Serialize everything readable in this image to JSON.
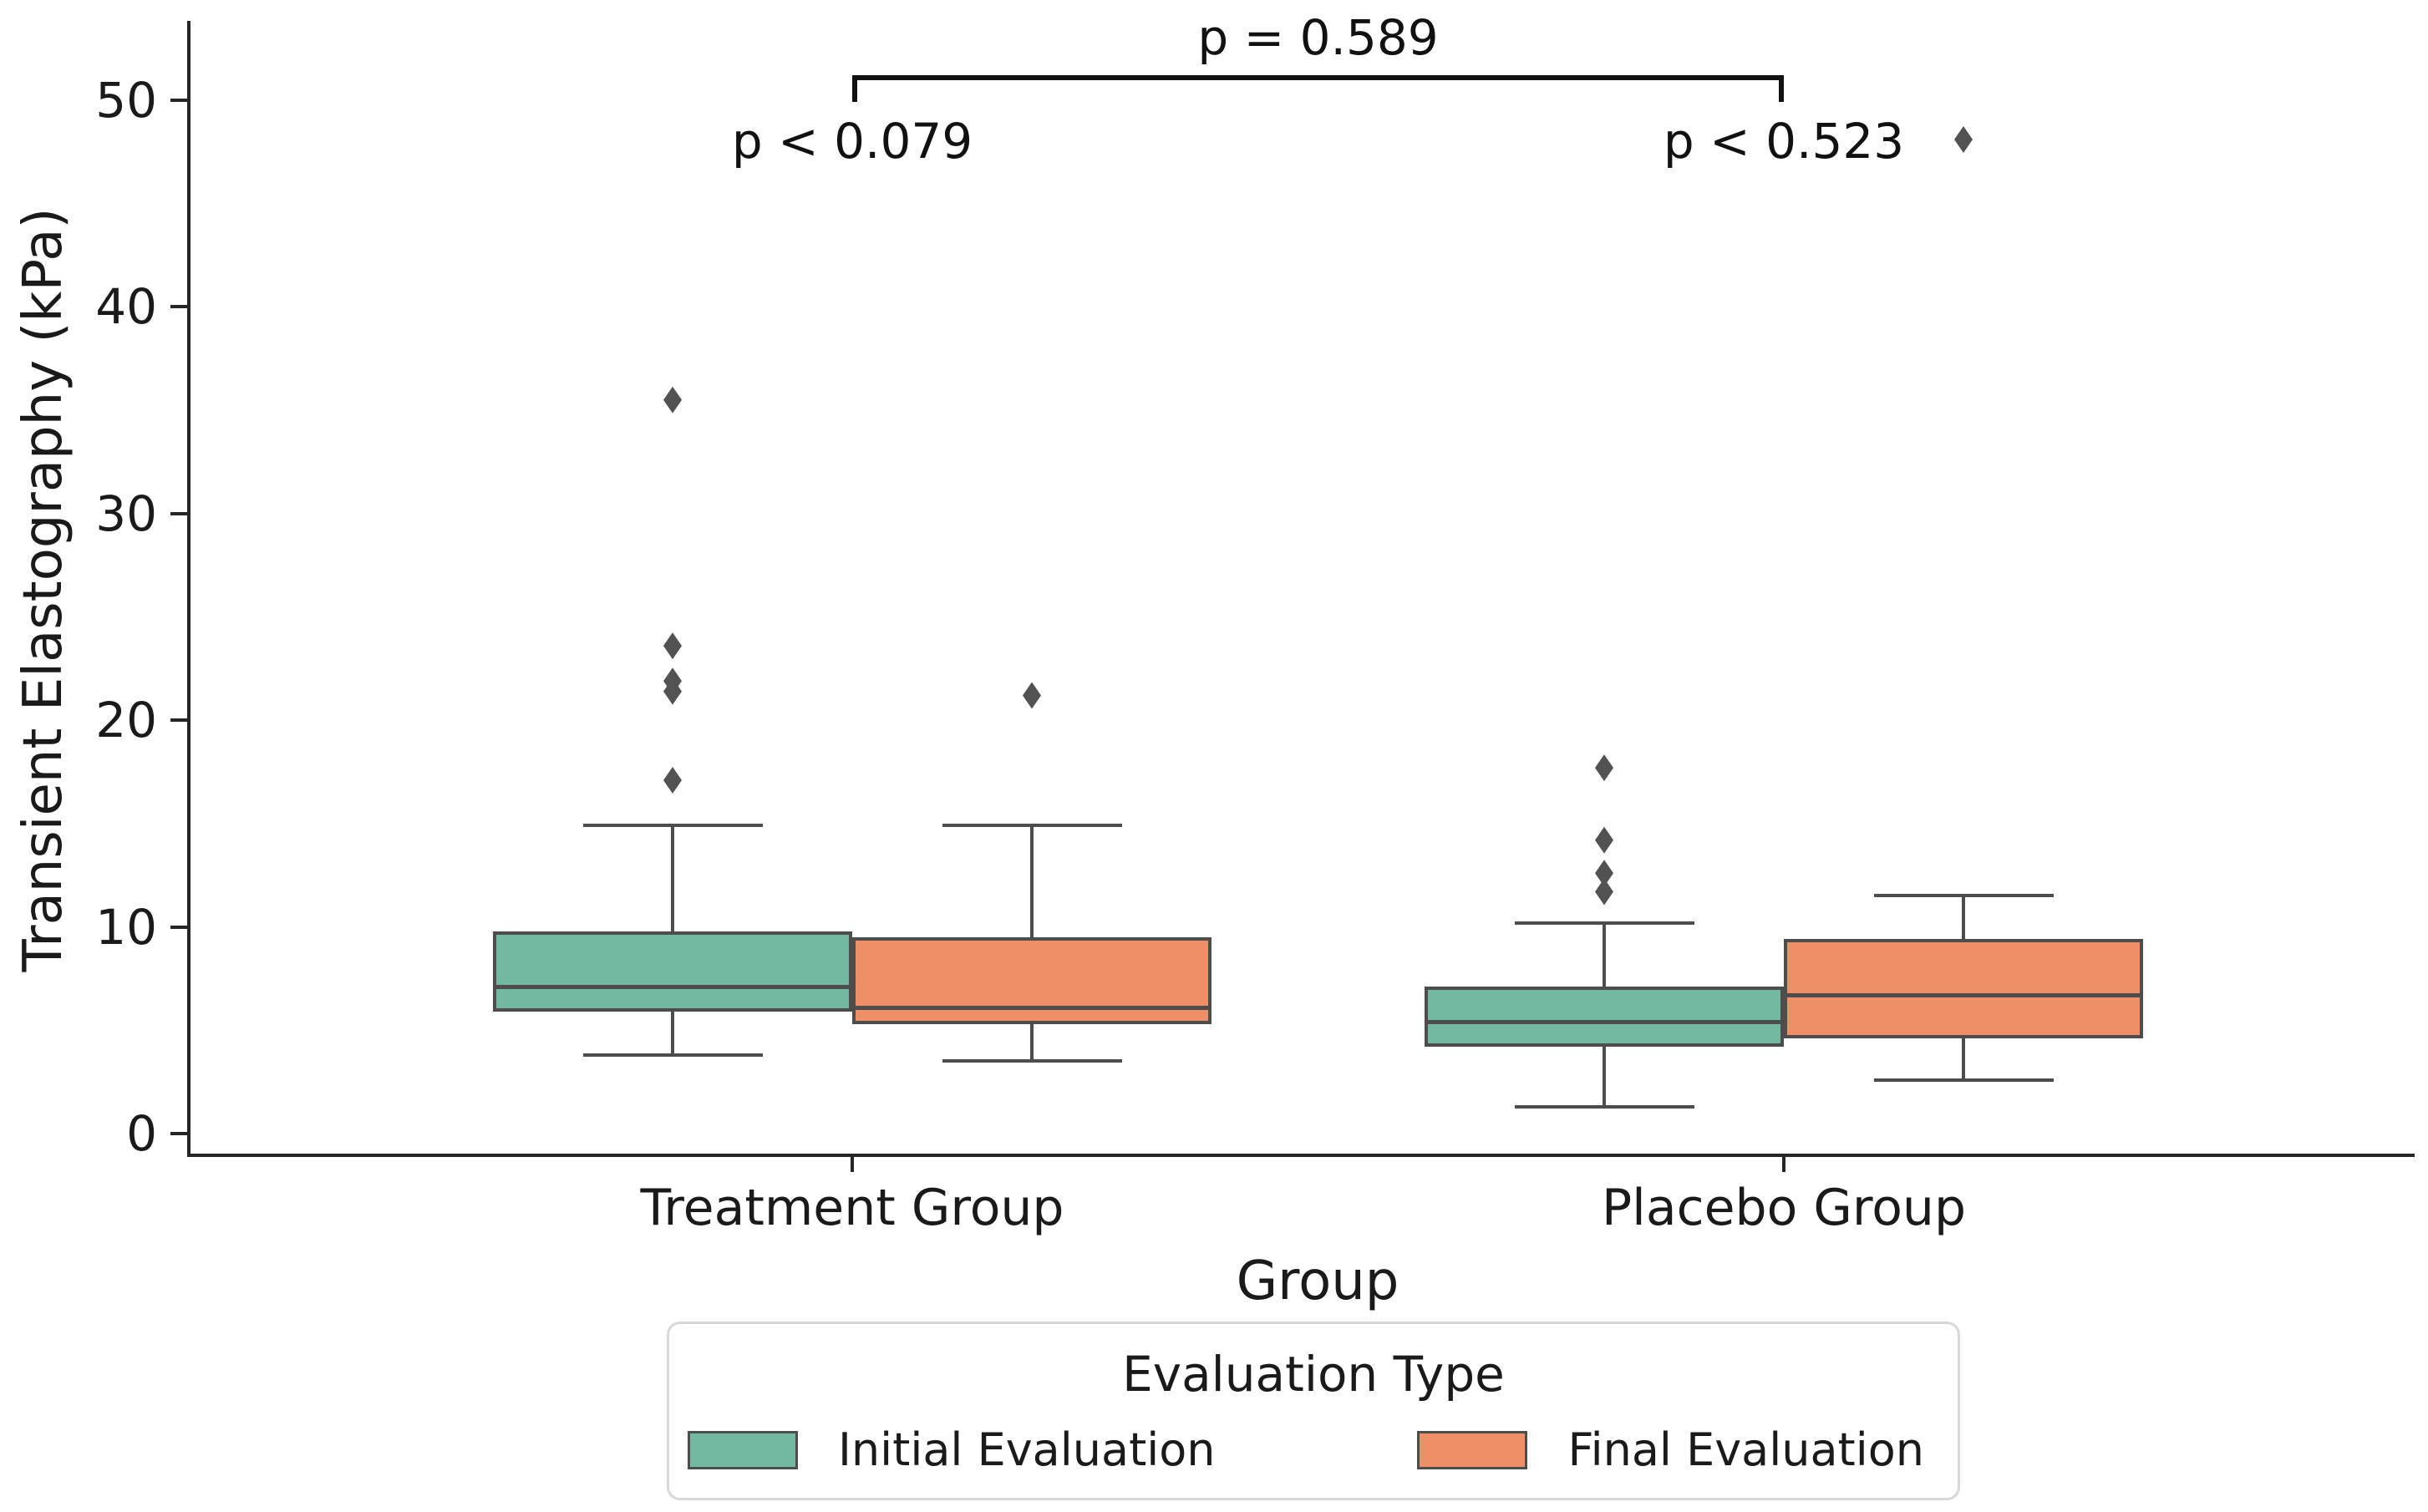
{
  "figure": {
    "ylabel": "Transient Elastography (kPa)",
    "xlabel": "Group"
  },
  "legend": {
    "title": "Evaluation Type",
    "entries": [
      {
        "label": "Initial Evaluation",
        "color": "#73b8a0"
      },
      {
        "label": "Final Evaluation",
        "color": "#ee8f68"
      }
    ]
  },
  "chart_data": {
    "type": "boxplot",
    "title": "",
    "xlabel": "Group",
    "ylabel": "Transient Elastography (kPa)",
    "ylim": [
      -1.5,
      53.5
    ],
    "yticks": [
      0,
      10,
      20,
      30,
      40,
      50
    ],
    "categories": [
      "Treatment Group",
      "Placebo Group"
    ],
    "grid": false,
    "legend_position": "bottom",
    "legend_title": "Evaluation Type",
    "edge_color": "#4d4d4d",
    "flier_color": "#525252",
    "series": [
      {
        "name": "Initial Evaluation",
        "color": "#73b8a0",
        "boxes": [
          {
            "group": "Treatment Group",
            "whisker_low": 3.8,
            "q1": 5.9,
            "median": 7.1,
            "q3": 9.8,
            "whisker_high": 14.9,
            "outliers": [
              17.1,
              21.4,
              21.9,
              23.6,
              35.5
            ]
          },
          {
            "group": "Placebo Group",
            "whisker_low": 1.3,
            "q1": 4.2,
            "median": 5.4,
            "q3": 7.1,
            "whisker_high": 10.2,
            "outliers": [
              11.7,
              12.6,
              14.2,
              17.7
            ]
          }
        ]
      },
      {
        "name": "Final Evaluation",
        "color": "#ee8f68",
        "boxes": [
          {
            "group": "Treatment Group",
            "whisker_low": 3.5,
            "q1": 5.3,
            "median": 6.1,
            "q3": 9.5,
            "whisker_high": 14.9,
            "outliers": [
              21.2
            ]
          },
          {
            "group": "Placebo Group",
            "whisker_low": 2.6,
            "q1": 4.6,
            "median": 6.7,
            "q3": 9.4,
            "whisker_high": 11.5,
            "outliers": [
              48.1
            ]
          }
        ]
      }
    ],
    "significance": [
      {
        "type": "bracket",
        "label": "p = 0.589",
        "between": [
          "Treatment Group",
          "Placebo Group"
        ],
        "y": 51.2
      },
      {
        "type": "text",
        "label": "p < 0.079",
        "at": "Treatment Group",
        "y": 48.0
      },
      {
        "type": "text",
        "label": "p < 0.523",
        "at": "Placebo Group",
        "y": 48.0
      }
    ]
  }
}
